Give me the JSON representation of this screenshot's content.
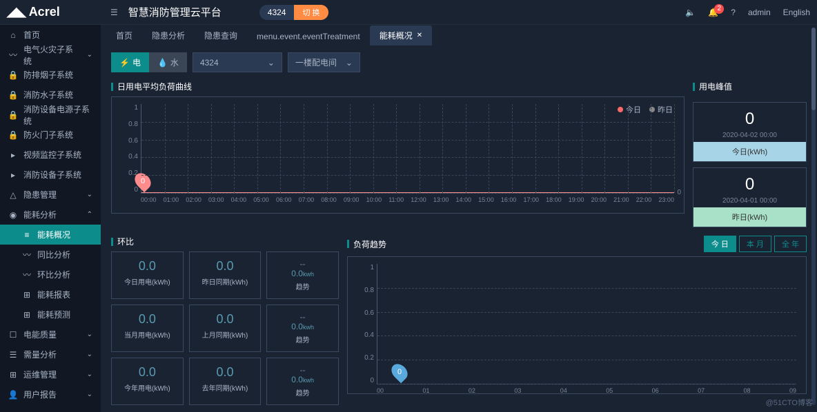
{
  "header": {
    "logo": "Acrel",
    "title": "智慧消防管理云平台",
    "pill_text": "4324",
    "pill_btn": "切 换",
    "badge": "2",
    "user": "admin",
    "lang": "English"
  },
  "sidebar": {
    "items": [
      {
        "icon": "⌂",
        "label": "首页",
        "chev": ""
      },
      {
        "icon": "〰",
        "label": "电气火灾子系统",
        "chev": "⌄"
      },
      {
        "icon": "🔒",
        "label": "防排烟子系统",
        "chev": ""
      },
      {
        "icon": "🔒",
        "label": "消防水子系统",
        "chev": ""
      },
      {
        "icon": "🔒",
        "label": "消防设备电源子系统",
        "chev": ""
      },
      {
        "icon": "🔒",
        "label": "防火门子系统",
        "chev": ""
      },
      {
        "icon": "▸",
        "label": "视频监控子系统",
        "chev": ""
      },
      {
        "icon": "▸",
        "label": "消防设备子系统",
        "chev": ""
      },
      {
        "icon": "△",
        "label": "隐患管理",
        "chev": "⌄"
      },
      {
        "icon": "◉",
        "label": "能耗分析",
        "chev": "⌃",
        "expanded": true
      },
      {
        "icon": "≡",
        "label": "能耗概况",
        "sub": true,
        "active": true
      },
      {
        "icon": "〰",
        "label": "同比分析",
        "sub": true
      },
      {
        "icon": "〰",
        "label": "环比分析",
        "sub": true
      },
      {
        "icon": "⊞",
        "label": "能耗报表",
        "sub": true
      },
      {
        "icon": "⊞",
        "label": "能耗预测",
        "sub": true
      },
      {
        "icon": "☐",
        "label": "电能质量",
        "chev": "⌄"
      },
      {
        "icon": "☰",
        "label": "需量分析",
        "chev": "⌄"
      },
      {
        "icon": "⊞",
        "label": "运维管理",
        "chev": "⌄"
      },
      {
        "icon": "👤",
        "label": "用户报告",
        "chev": "⌄"
      }
    ]
  },
  "tabs": [
    {
      "label": "首页"
    },
    {
      "label": "隐患分析"
    },
    {
      "label": "隐患查询"
    },
    {
      "label": "menu.event.eventTreatment"
    },
    {
      "label": "能耗概况",
      "active": true,
      "close": true
    }
  ],
  "toolbar": {
    "elec": "电",
    "water": "水",
    "select1": "4324",
    "select2": "一楼配电间"
  },
  "main_chart": {
    "title": "日用电平均负荷曲线",
    "legend_today": "今日",
    "legend_yesterday": "昨日",
    "legend_today_color": "#ff6b6b",
    "legend_yesterday_color": "#888",
    "y_ticks": [
      "1",
      "0.8",
      "0.6",
      "0.4",
      "0.2",
      "0"
    ],
    "x_ticks": [
      "00:00",
      "01:00",
      "02:00",
      "03:00",
      "04:00",
      "05:00",
      "06:00",
      "07:00",
      "08:00",
      "09:00",
      "10:00",
      "11:00",
      "12:00",
      "13:00",
      "14:00",
      "15:00",
      "16:00",
      "17:00",
      "18:00",
      "19:00",
      "20:00",
      "21:00",
      "22:00",
      "23:00"
    ],
    "marker_value": "0",
    "zero": "0",
    "line_color": "#ff8c8c"
  },
  "peak": {
    "title": "用电峰值",
    "today_value": "0",
    "today_date": "2020-04-02 00:00",
    "today_label": "今日(kWh)",
    "yest_value": "0",
    "yest_date": "2020-04-01 00:00",
    "yest_label": "昨日(kWh)"
  },
  "ring": {
    "title": "环比",
    "cards": [
      {
        "v": "0.0",
        "l": "今日用电(kWh)"
      },
      {
        "v": "0.0",
        "l": "昨日同期(kWh)"
      },
      {
        "d": "--",
        "t": "0.0",
        "u": "kwh",
        "l": "趋势"
      },
      {
        "v": "0.0",
        "l": "当月用电(kWh)"
      },
      {
        "v": "0.0",
        "l": "上月同期(kWh)"
      },
      {
        "d": "--",
        "t": "0.0",
        "u": "kwh",
        "l": "趋势"
      },
      {
        "v": "0.0",
        "l": "今年用电(kWh)"
      },
      {
        "v": "0.0",
        "l": "去年同期(kWh)"
      },
      {
        "d": "--",
        "t": "0.0",
        "u": "kwh",
        "l": "趋势"
      }
    ]
  },
  "trend": {
    "title": "负荷趋势",
    "periods": [
      "今 日",
      "本 月",
      "全 年"
    ],
    "y_ticks": [
      "1",
      "0.8",
      "0.6",
      "0.4",
      "0.2",
      "0"
    ],
    "x_ticks": [
      "00",
      "01",
      "02",
      "03",
      "04",
      "05",
      "06",
      "07",
      "08",
      "09"
    ],
    "marker_value": "0"
  },
  "watermark": "@51CTO博客"
}
